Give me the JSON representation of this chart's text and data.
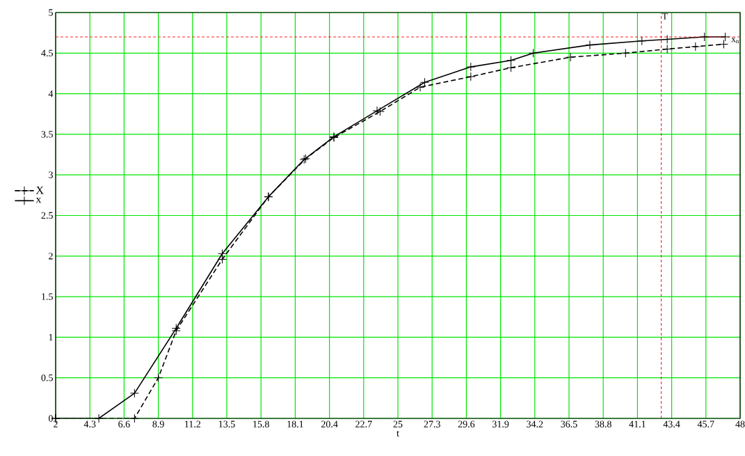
{
  "chart_data": {
    "type": "line",
    "xlabel": "t",
    "xlim": [
      2,
      48
    ],
    "ylim": [
      0,
      5
    ],
    "xticks": [
      2,
      4.3,
      6.6,
      8.9,
      11.2,
      13.5,
      15.8,
      18.1,
      20.4,
      22.7,
      25,
      27.3,
      29.6,
      31.9,
      34.2,
      36.5,
      38.8,
      41.1,
      43.4,
      45.7,
      48
    ],
    "yticks": [
      0,
      0.5,
      1,
      1.5,
      2,
      2.5,
      3,
      3.5,
      4,
      4.5,
      5
    ],
    "grid": true,
    "legend": "left",
    "marker": "cross",
    "series": [
      {
        "name": "X",
        "color": "#000000",
        "line_style": "dashed",
        "x": [
          2,
          7.3,
          8.9,
          10.1,
          13.2,
          16.3,
          18.8,
          20.7,
          23.8,
          26.5,
          29.9,
          32.6,
          36.6,
          40.3,
          43.1,
          45.0,
          46.9
        ],
        "values": [
          0,
          0,
          0.5,
          1.08,
          1.96,
          2.73,
          3.2,
          3.46,
          3.78,
          4.08,
          4.21,
          4.32,
          4.45,
          4.5,
          4.55,
          4.58,
          4.61
        ]
      },
      {
        "name": "x",
        "color": "#000000",
        "line_style": "solid",
        "x": [
          2,
          4.9,
          7.3,
          10.1,
          13.2,
          16.3,
          18.7,
          20.7,
          23.6,
          26.8,
          29.9,
          32.6,
          34.1,
          37.9,
          41.4,
          43.1,
          45.6,
          47.0
        ],
        "values": [
          0,
          0,
          0.31,
          1.11,
          2.03,
          2.73,
          3.19,
          3.47,
          3.79,
          4.14,
          4.33,
          4.41,
          4.5,
          4.6,
          4.65,
          4.67,
          4.7,
          4.7
        ]
      }
    ],
    "ref_lines": [
      {
        "axis": "y",
        "value": 4.7,
        "label": "x$_{n}$",
        "color": "#ff0000",
        "line_style": "dashed"
      },
      {
        "axis": "x",
        "value": 42.7,
        "label": "T",
        "color": "#ff0000",
        "line_style": "dashed"
      }
    ]
  }
}
